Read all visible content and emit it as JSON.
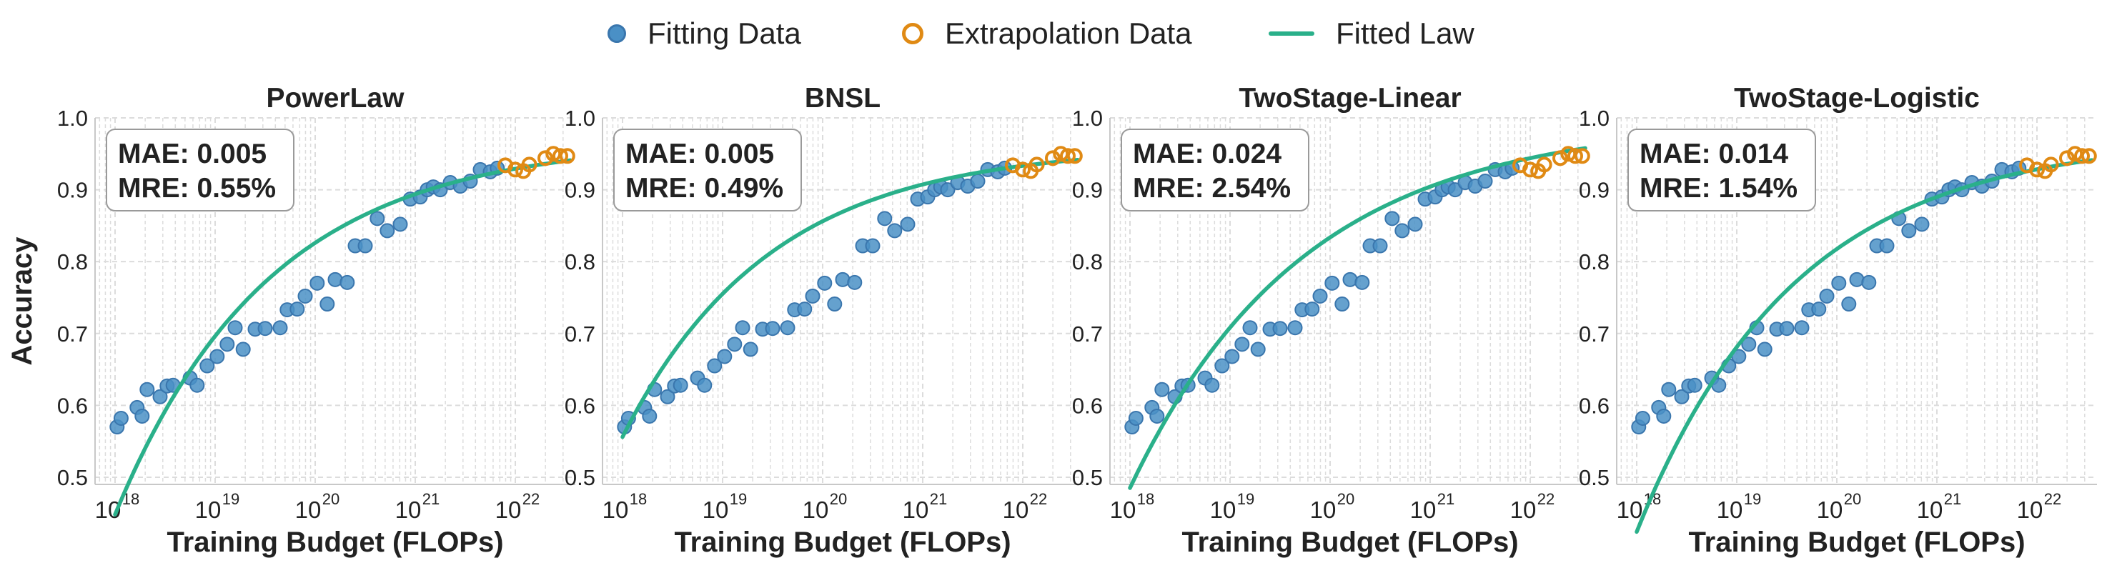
{
  "legend": {
    "fitting_label": "Fitting Data",
    "extrapolation_label": "Extrapolation Data",
    "fitted_label": "Fitted Law"
  },
  "colors": {
    "fitting_fill": "#4a90c6",
    "fitting_edge": "#3a76ad",
    "extrapolation": "#e08a14",
    "fitted_line": "#2ab08a",
    "grid": "#dcdcdc"
  },
  "shared_axes": {
    "ylabel": "Accuracy",
    "xlabel": "Training Budget (FLOPs)",
    "ylim": [
      0.49,
      1.0
    ],
    "yticks": [
      "0.5",
      "0.6",
      "0.7",
      "0.8",
      "0.9",
      "1.0"
    ],
    "xlim_log10": [
      17.8,
      22.6
    ],
    "xtick_base": "10",
    "xtick_exponents": [
      "18",
      "19",
      "20",
      "21",
      "22"
    ]
  },
  "chart_data": [
    {
      "type": "scatter",
      "title": "PowerLaw",
      "metrics": [
        "MAE: 0.005",
        "MRE: 0.55%"
      ],
      "fitting_points": [
        [
          18.02,
          0.57
        ],
        [
          18.06,
          0.582
        ],
        [
          18.22,
          0.597
        ],
        [
          18.27,
          0.585
        ],
        [
          18.32,
          0.622
        ],
        [
          18.45,
          0.612
        ],
        [
          18.52,
          0.627
        ],
        [
          18.58,
          0.628
        ],
        [
          18.75,
          0.638
        ],
        [
          18.82,
          0.628
        ],
        [
          18.92,
          0.655
        ],
        [
          19.02,
          0.668
        ],
        [
          19.12,
          0.685
        ],
        [
          19.2,
          0.708
        ],
        [
          19.28,
          0.678
        ],
        [
          19.4,
          0.706
        ],
        [
          19.5,
          0.707
        ],
        [
          19.65,
          0.708
        ],
        [
          19.72,
          0.733
        ],
        [
          19.82,
          0.734
        ],
        [
          19.9,
          0.752
        ],
        [
          20.02,
          0.77
        ],
        [
          20.12,
          0.741
        ],
        [
          20.2,
          0.775
        ],
        [
          20.32,
          0.771
        ],
        [
          20.4,
          0.822
        ],
        [
          20.5,
          0.822
        ],
        [
          20.62,
          0.86
        ],
        [
          20.72,
          0.843
        ],
        [
          20.85,
          0.852
        ],
        [
          20.95,
          0.887
        ],
        [
          21.05,
          0.89
        ],
        [
          21.12,
          0.9
        ],
        [
          21.18,
          0.904
        ],
        [
          21.25,
          0.9
        ],
        [
          21.35,
          0.91
        ],
        [
          21.45,
          0.905
        ],
        [
          21.55,
          0.912
        ],
        [
          21.65,
          0.928
        ],
        [
          21.75,
          0.925
        ],
        [
          21.82,
          0.93
        ]
      ],
      "extrapolation_points": [
        [
          21.9,
          0.934
        ],
        [
          22.0,
          0.928
        ],
        [
          22.08,
          0.926
        ],
        [
          22.14,
          0.935
        ],
        [
          22.3,
          0.944
        ],
        [
          22.38,
          0.95
        ],
        [
          22.45,
          0.947
        ],
        [
          22.52,
          0.947
        ]
      ],
      "fit": {
        "kind": "powerlaw",
        "x_range": [
          18.0,
          22.55
        ]
      }
    },
    {
      "type": "scatter",
      "title": "BNSL",
      "metrics": [
        "MAE: 0.005",
        "MRE: 0.49%"
      ],
      "fitting_points": [
        [
          18.02,
          0.57
        ],
        [
          18.06,
          0.582
        ],
        [
          18.22,
          0.597
        ],
        [
          18.27,
          0.585
        ],
        [
          18.32,
          0.622
        ],
        [
          18.45,
          0.612
        ],
        [
          18.52,
          0.627
        ],
        [
          18.58,
          0.628
        ],
        [
          18.75,
          0.638
        ],
        [
          18.82,
          0.628
        ],
        [
          18.92,
          0.655
        ],
        [
          19.02,
          0.668
        ],
        [
          19.12,
          0.685
        ],
        [
          19.2,
          0.708
        ],
        [
          19.28,
          0.678
        ],
        [
          19.4,
          0.706
        ],
        [
          19.5,
          0.707
        ],
        [
          19.65,
          0.708
        ],
        [
          19.72,
          0.733
        ],
        [
          19.82,
          0.734
        ],
        [
          19.9,
          0.752
        ],
        [
          20.02,
          0.77
        ],
        [
          20.12,
          0.741
        ],
        [
          20.2,
          0.775
        ],
        [
          20.32,
          0.771
        ],
        [
          20.4,
          0.822
        ],
        [
          20.5,
          0.822
        ],
        [
          20.62,
          0.86
        ],
        [
          20.72,
          0.843
        ],
        [
          20.85,
          0.852
        ],
        [
          20.95,
          0.887
        ],
        [
          21.05,
          0.89
        ],
        [
          21.12,
          0.9
        ],
        [
          21.18,
          0.904
        ],
        [
          21.25,
          0.9
        ],
        [
          21.35,
          0.91
        ],
        [
          21.45,
          0.905
        ],
        [
          21.55,
          0.912
        ],
        [
          21.65,
          0.928
        ],
        [
          21.75,
          0.925
        ],
        [
          21.82,
          0.93
        ]
      ],
      "extrapolation_points": [
        [
          21.9,
          0.934
        ],
        [
          22.0,
          0.928
        ],
        [
          22.08,
          0.926
        ],
        [
          22.14,
          0.935
        ],
        [
          22.3,
          0.944
        ],
        [
          22.38,
          0.95
        ],
        [
          22.45,
          0.947
        ],
        [
          22.52,
          0.947
        ]
      ],
      "fit": {
        "kind": "bnsl",
        "x_range": [
          18.0,
          22.55
        ]
      }
    },
    {
      "type": "scatter",
      "title": "TwoStage-Linear",
      "metrics": [
        "MAE: 0.024",
        "MRE: 2.54%"
      ],
      "fitting_points": [
        [
          18.02,
          0.57
        ],
        [
          18.06,
          0.582
        ],
        [
          18.22,
          0.597
        ],
        [
          18.27,
          0.585
        ],
        [
          18.32,
          0.622
        ],
        [
          18.45,
          0.612
        ],
        [
          18.52,
          0.627
        ],
        [
          18.58,
          0.628
        ],
        [
          18.75,
          0.638
        ],
        [
          18.82,
          0.628
        ],
        [
          18.92,
          0.655
        ],
        [
          19.02,
          0.668
        ],
        [
          19.12,
          0.685
        ],
        [
          19.2,
          0.708
        ],
        [
          19.28,
          0.678
        ],
        [
          19.4,
          0.706
        ],
        [
          19.5,
          0.707
        ],
        [
          19.65,
          0.708
        ],
        [
          19.72,
          0.733
        ],
        [
          19.82,
          0.734
        ],
        [
          19.9,
          0.752
        ],
        [
          20.02,
          0.77
        ],
        [
          20.12,
          0.741
        ],
        [
          20.2,
          0.775
        ],
        [
          20.32,
          0.771
        ],
        [
          20.4,
          0.822
        ],
        [
          20.5,
          0.822
        ],
        [
          20.62,
          0.86
        ],
        [
          20.72,
          0.843
        ],
        [
          20.85,
          0.852
        ],
        [
          20.95,
          0.887
        ],
        [
          21.05,
          0.89
        ],
        [
          21.12,
          0.9
        ],
        [
          21.18,
          0.904
        ],
        [
          21.25,
          0.9
        ],
        [
          21.35,
          0.91
        ],
        [
          21.45,
          0.905
        ],
        [
          21.55,
          0.912
        ],
        [
          21.65,
          0.928
        ],
        [
          21.75,
          0.925
        ],
        [
          21.82,
          0.93
        ]
      ],
      "extrapolation_points": [
        [
          21.9,
          0.934
        ],
        [
          22.0,
          0.928
        ],
        [
          22.08,
          0.926
        ],
        [
          22.14,
          0.935
        ],
        [
          22.3,
          0.944
        ],
        [
          22.38,
          0.95
        ],
        [
          22.45,
          0.947
        ],
        [
          22.52,
          0.947
        ]
      ],
      "fit": {
        "kind": "linear",
        "x_range": [
          18.0,
          22.55
        ]
      }
    },
    {
      "type": "scatter",
      "title": "TwoStage-Logistic",
      "metrics": [
        "MAE: 0.014",
        "MRE: 1.54%"
      ],
      "fitting_points": [
        [
          18.02,
          0.57
        ],
        [
          18.06,
          0.582
        ],
        [
          18.22,
          0.597
        ],
        [
          18.27,
          0.585
        ],
        [
          18.32,
          0.622
        ],
        [
          18.45,
          0.612
        ],
        [
          18.52,
          0.627
        ],
        [
          18.58,
          0.628
        ],
        [
          18.75,
          0.638
        ],
        [
          18.82,
          0.628
        ],
        [
          18.92,
          0.655
        ],
        [
          19.02,
          0.668
        ],
        [
          19.12,
          0.685
        ],
        [
          19.2,
          0.708
        ],
        [
          19.28,
          0.678
        ],
        [
          19.4,
          0.706
        ],
        [
          19.5,
          0.707
        ],
        [
          19.65,
          0.708
        ],
        [
          19.72,
          0.733
        ],
        [
          19.82,
          0.734
        ],
        [
          19.9,
          0.752
        ],
        [
          20.02,
          0.77
        ],
        [
          20.12,
          0.741
        ],
        [
          20.2,
          0.775
        ],
        [
          20.32,
          0.771
        ],
        [
          20.4,
          0.822
        ],
        [
          20.5,
          0.822
        ],
        [
          20.62,
          0.86
        ],
        [
          20.72,
          0.843
        ],
        [
          20.85,
          0.852
        ],
        [
          20.95,
          0.887
        ],
        [
          21.05,
          0.89
        ],
        [
          21.12,
          0.9
        ],
        [
          21.18,
          0.904
        ],
        [
          21.25,
          0.9
        ],
        [
          21.35,
          0.91
        ],
        [
          21.45,
          0.905
        ],
        [
          21.55,
          0.912
        ],
        [
          21.65,
          0.928
        ],
        [
          21.75,
          0.925
        ],
        [
          21.82,
          0.93
        ]
      ],
      "extrapolation_points": [
        [
          21.9,
          0.934
        ],
        [
          22.0,
          0.928
        ],
        [
          22.08,
          0.926
        ],
        [
          22.14,
          0.935
        ],
        [
          22.3,
          0.944
        ],
        [
          22.38,
          0.95
        ],
        [
          22.45,
          0.947
        ],
        [
          22.52,
          0.947
        ]
      ],
      "fit": {
        "kind": "logistic",
        "x_range": [
          18.0,
          22.55
        ]
      }
    }
  ]
}
